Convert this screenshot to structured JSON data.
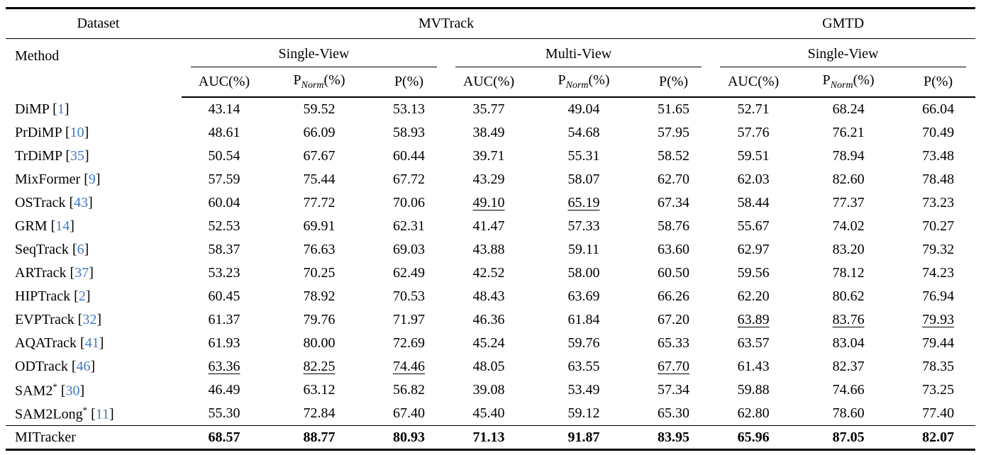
{
  "header": {
    "dataset_label": "Dataset",
    "method_label": "Method",
    "datasets": [
      "MVTrack",
      "GMTD"
    ],
    "view_groups": [
      "Single-View",
      "Multi-View",
      "Single-View"
    ],
    "metrics": {
      "auc": "AUC(%)",
      "p_base": "P",
      "p_sub": "Norm",
      "p_pct": "(%)",
      "p": "P(%)"
    },
    "citation_color": "#4279bd"
  },
  "chart_data": {
    "type": "table",
    "column_groups": [
      {
        "dataset": "MVTrack",
        "view": "Single-View",
        "metrics": [
          "AUC(%)",
          "P_Norm(%)",
          "P(%)"
        ]
      },
      {
        "dataset": "MVTrack",
        "view": "Multi-View",
        "metrics": [
          "AUC(%)",
          "P_Norm(%)",
          "P(%)"
        ]
      },
      {
        "dataset": "GMTD",
        "view": "Single-View",
        "metrics": [
          "AUC(%)",
          "P_Norm(%)",
          "P(%)"
        ]
      }
    ]
  },
  "rows": [
    {
      "method": "DiMP",
      "sup": "",
      "cite": "1",
      "values": [
        "43.14",
        "59.52",
        "53.13",
        "35.77",
        "49.04",
        "51.65",
        "52.71",
        "68.24",
        "66.04"
      ],
      "underline": [],
      "bold": false
    },
    {
      "method": "PrDiMP",
      "sup": "",
      "cite": "10",
      "values": [
        "48.61",
        "66.09",
        "58.93",
        "38.49",
        "54.68",
        "57.95",
        "57.76",
        "76.21",
        "70.49"
      ],
      "underline": [],
      "bold": false
    },
    {
      "method": "TrDiMP",
      "sup": "",
      "cite": "35",
      "values": [
        "50.54",
        "67.67",
        "60.44",
        "39.71",
        "55.31",
        "58.52",
        "59.51",
        "78.94",
        "73.48"
      ],
      "underline": [],
      "bold": false
    },
    {
      "method": "MixFormer",
      "sup": "",
      "cite": "9",
      "values": [
        "57.59",
        "75.44",
        "67.72",
        "43.29",
        "58.07",
        "62.70",
        "62.03",
        "82.60",
        "78.48"
      ],
      "underline": [],
      "bold": false
    },
    {
      "method": "OSTrack",
      "sup": "",
      "cite": "43",
      "values": [
        "60.04",
        "77.72",
        "70.06",
        "49.10",
        "65.19",
        "67.34",
        "58.44",
        "77.37",
        "73.23"
      ],
      "underline": [
        3,
        4
      ],
      "bold": false
    },
    {
      "method": "GRM",
      "sup": "",
      "cite": "14",
      "values": [
        "52.53",
        "69.91",
        "62.31",
        "41.47",
        "57.33",
        "58.76",
        "55.67",
        "74.02",
        "70.27"
      ],
      "underline": [],
      "bold": false
    },
    {
      "method": "SeqTrack",
      "sup": "",
      "cite": "6",
      "values": [
        "58.37",
        "76.63",
        "69.03",
        "43.88",
        "59.11",
        "63.60",
        "62.97",
        "83.20",
        "79.32"
      ],
      "underline": [],
      "bold": false
    },
    {
      "method": "ARTrack",
      "sup": "",
      "cite": "37",
      "values": [
        "53.23",
        "70.25",
        "62.49",
        "42.52",
        "58.00",
        "60.50",
        "59.56",
        "78.12",
        "74.23"
      ],
      "underline": [],
      "bold": false
    },
    {
      "method": "HIPTrack",
      "sup": "",
      "cite": "2",
      "values": [
        "60.45",
        "78.92",
        "70.53",
        "48.43",
        "63.69",
        "66.26",
        "62.20",
        "80.62",
        "76.94"
      ],
      "underline": [],
      "bold": false
    },
    {
      "method": "EVPTrack",
      "sup": "",
      "cite": "32",
      "values": [
        "61.37",
        "79.76",
        "71.97",
        "46.36",
        "61.84",
        "67.20",
        "63.89",
        "83.76",
        "79.93"
      ],
      "underline": [
        6,
        7,
        8
      ],
      "bold": false
    },
    {
      "method": "AQATrack",
      "sup": "",
      "cite": "41",
      "values": [
        "61.93",
        "80.00",
        "72.69",
        "45.24",
        "59.76",
        "65.33",
        "63.57",
        "83.04",
        "79.44"
      ],
      "underline": [],
      "bold": false
    },
    {
      "method": "ODTrack",
      "sup": "",
      "cite": "46",
      "values": [
        "63.36",
        "82.25",
        "74.46",
        "48.05",
        "63.55",
        "67.70",
        "61.43",
        "82.37",
        "78.35"
      ],
      "underline": [
        0,
        1,
        2,
        5
      ],
      "bold": false
    },
    {
      "method": "SAM2",
      "sup": "*",
      "cite": "30",
      "values": [
        "46.49",
        "63.12",
        "56.82",
        "39.08",
        "53.49",
        "57.34",
        "59.88",
        "74.66",
        "73.25"
      ],
      "underline": [],
      "bold": false
    },
    {
      "method": "SAM2Long",
      "sup": "*",
      "cite": "11",
      "values": [
        "55.30",
        "72.84",
        "67.40",
        "45.40",
        "59.12",
        "65.30",
        "62.80",
        "78.60",
        "77.40"
      ],
      "underline": [],
      "bold": false
    },
    {
      "method": "MITracker",
      "sup": "",
      "cite": null,
      "values": [
        "68.57",
        "88.77",
        "80.93",
        "71.13",
        "91.87",
        "83.95",
        "65.96",
        "87.05",
        "82.07"
      ],
      "underline": [],
      "bold": true
    }
  ]
}
